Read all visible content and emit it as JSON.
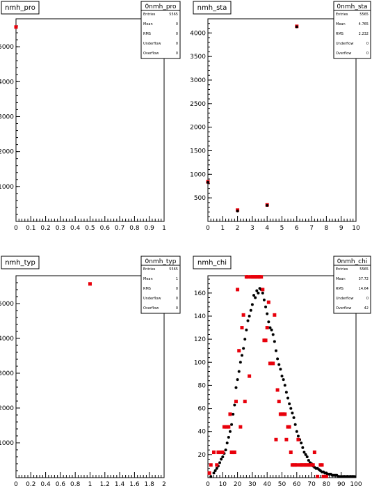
{
  "chart_data": [
    {
      "type": "scatter",
      "title": "nmh_pro",
      "stats": {
        "name": "0nmh_pro",
        "rows": [
          [
            "Entries",
            "5565"
          ],
          [
            "Mean",
            "0"
          ],
          [
            "RMS",
            "0"
          ],
          [
            "Underflow",
            "0"
          ],
          [
            "Overflow",
            "0"
          ]
        ]
      },
      "xlim": [
        0,
        1
      ],
      "ylim": [
        0,
        5800
      ],
      "xticks": [
        "0",
        "0.1",
        "0.2",
        "0.3",
        "0.4",
        "0.5",
        "0.6",
        "0.7",
        "0.8",
        "0.9",
        "1"
      ],
      "yticks": [
        1000,
        2000,
        3000,
        4000,
        5000
      ],
      "ytick_labels": [
        "1000",
        "2000",
        "3000",
        "4000",
        "5000"
      ],
      "series": [
        {
          "color": "#e8000b",
          "marker": "square",
          "points": [
            [
              0,
              5565
            ]
          ]
        }
      ]
    },
    {
      "type": "scatter",
      "title": "nmh_sta",
      "stats": {
        "name": "0nmh_sta",
        "rows": [
          [
            "Entries",
            "5565"
          ],
          [
            "Mean",
            "4.765"
          ],
          [
            "RMS",
            "2.232"
          ],
          [
            "Underflow",
            "0"
          ],
          [
            "Overflow",
            "0"
          ]
        ]
      },
      "xlim": [
        0,
        10
      ],
      "ylim": [
        0,
        4300
      ],
      "xticks": [
        "0",
        "1",
        "2",
        "3",
        "4",
        "5",
        "6",
        "7",
        "8",
        "9",
        "10"
      ],
      "yticks": [
        500,
        1000,
        1500,
        2000,
        2500,
        3000,
        3500,
        4000
      ],
      "ytick_labels": [
        "500",
        "1000",
        "1500",
        "2000",
        "2500",
        "3000",
        "3500",
        "4000"
      ],
      "series": [
        {
          "color": "#e8000b",
          "marker": "square",
          "points": [
            [
              0,
              840
            ],
            [
              2,
              240
            ],
            [
              4,
              350
            ],
            [
              6,
              4140
            ]
          ]
        },
        {
          "color": "#000000",
          "marker": "circle",
          "points": [
            [
              0,
              830
            ],
            [
              2,
              220
            ],
            [
              4,
              340
            ],
            [
              6,
              4130
            ]
          ]
        }
      ]
    },
    {
      "type": "scatter",
      "title": "nmh_typ",
      "stats": {
        "name": "0nmh_typ",
        "rows": [
          [
            "Entries",
            "5565"
          ],
          [
            "Mean",
            "1"
          ],
          [
            "RMS",
            "0"
          ],
          [
            "Underflow",
            "0"
          ],
          [
            "Overflow",
            "0"
          ]
        ]
      },
      "xlim": [
        0,
        2
      ],
      "ylim": [
        0,
        5800
      ],
      "xticks": [
        "0",
        "0.2",
        "0.4",
        "0.6",
        "0.8",
        "1",
        "1.2",
        "1.4",
        "1.6",
        "1.8",
        "2"
      ],
      "yticks": [
        1000,
        2000,
        3000,
        4000,
        5000
      ],
      "ytick_labels": [
        "1000",
        "2000",
        "3000",
        "4000",
        "5000"
      ],
      "series": [
        {
          "color": "#e8000b",
          "marker": "square",
          "points": [
            [
              1,
              5565
            ]
          ]
        }
      ]
    },
    {
      "type": "scatter",
      "title": "nmh_chi",
      "stats": {
        "name": "0nmh_chi",
        "rows": [
          [
            "Entries",
            "5565"
          ],
          [
            "Mean",
            "37.72"
          ],
          [
            "RMS",
            "14.64"
          ],
          [
            "Underflow",
            "0"
          ],
          [
            "Overflow",
            "42"
          ]
        ]
      },
      "xlim": [
        0,
        100
      ],
      "ylim": [
        0,
        175
      ],
      "xticks": [
        "0",
        "10",
        "20",
        "30",
        "40",
        "50",
        "60",
        "70",
        "80",
        "90",
        "100"
      ],
      "yticks": [
        20,
        40,
        60,
        80,
        100,
        120,
        140,
        160
      ],
      "ytick_labels": [
        "20",
        "40",
        "60",
        "80",
        "100",
        "120",
        "140",
        "160"
      ],
      "series": [
        {
          "color": "#000000",
          "marker": "circle",
          "points": [
            [
              2,
              1
            ],
            [
              4,
              4
            ],
            [
              5,
              6
            ],
            [
              6,
              8
            ],
            [
              7,
              10
            ],
            [
              8,
              13
            ],
            [
              9,
              16
            ],
            [
              10,
              18
            ],
            [
              11,
              21
            ],
            [
              12,
              24
            ],
            [
              13,
              30
            ],
            [
              14,
              35
            ],
            [
              15,
              40
            ],
            [
              16,
              46
            ],
            [
              17,
              55
            ],
            [
              18,
              63
            ],
            [
              19,
              78
            ],
            [
              20,
              85
            ],
            [
              21,
              92
            ],
            [
              22,
              100
            ],
            [
              23,
              106
            ],
            [
              24,
              112
            ],
            [
              25,
              120
            ],
            [
              26,
              128
            ],
            [
              27,
              136
            ],
            [
              28,
              140
            ],
            [
              29,
              145
            ],
            [
              30,
              150
            ],
            [
              31,
              158
            ],
            [
              32,
              156
            ],
            [
              33,
              162
            ],
            [
              34,
              160
            ],
            [
              35,
              164
            ],
            [
              36,
              163
            ],
            [
              37,
              160
            ],
            [
              38,
              154
            ],
            [
              39,
              148
            ],
            [
              40,
              142
            ],
            [
              41,
              135
            ],
            [
              42,
              130
            ],
            [
              43,
              128
            ],
            [
              44,
              124
            ],
            [
              45,
              118
            ],
            [
              46,
              110
            ],
            [
              47,
              103
            ],
            [
              48,
              98
            ],
            [
              49,
              94
            ],
            [
              50,
              88
            ],
            [
              51,
              85
            ],
            [
              52,
              80
            ],
            [
              53,
              74
            ],
            [
              54,
              69
            ],
            [
              55,
              64
            ],
            [
              56,
              60
            ],
            [
              57,
              56
            ],
            [
              58,
              52
            ],
            [
              59,
              46
            ],
            [
              60,
              40
            ],
            [
              61,
              36
            ],
            [
              62,
              33
            ],
            [
              63,
              30
            ],
            [
              64,
              26
            ],
            [
              65,
              22
            ],
            [
              66,
              20
            ],
            [
              67,
              18
            ],
            [
              68,
              15
            ],
            [
              69,
              13
            ],
            [
              70,
              12
            ],
            [
              71,
              10
            ],
            [
              72,
              9
            ],
            [
              73,
              8
            ],
            [
              74,
              8
            ],
            [
              75,
              7
            ],
            [
              76,
              6
            ],
            [
              77,
              5
            ],
            [
              78,
              5
            ],
            [
              79,
              4
            ],
            [
              80,
              4
            ],
            [
              81,
              3
            ],
            [
              82,
              3
            ],
            [
              83,
              3
            ],
            [
              84,
              2
            ],
            [
              85,
              2
            ],
            [
              86,
              2
            ],
            [
              87,
              2
            ],
            [
              88,
              1
            ],
            [
              89,
              1
            ],
            [
              90,
              1
            ],
            [
              91,
              1
            ],
            [
              92,
              1
            ],
            [
              93,
              1
            ],
            [
              94,
              1
            ],
            [
              95,
              1
            ],
            [
              96,
              1
            ],
            [
              97,
              1
            ],
            [
              98,
              1
            ],
            [
              99,
              1
            ]
          ]
        },
        {
          "color": "#e8000b",
          "marker": "square",
          "points": [
            [
              1,
              4
            ],
            [
              2,
              11
            ],
            [
              4,
              22
            ],
            [
              6,
              11
            ],
            [
              7,
              22
            ],
            [
              8,
              22
            ],
            [
              10,
              22
            ],
            [
              11,
              44
            ],
            [
              12,
              44
            ],
            [
              13,
              44
            ],
            [
              14,
              44
            ],
            [
              15,
              55
            ],
            [
              16,
              22
            ],
            [
              17,
              22
            ],
            [
              18,
              22
            ],
            [
              19,
              66
            ],
            [
              20,
              163
            ],
            [
              21,
              110
            ],
            [
              22,
              44
            ],
            [
              23,
              130
            ],
            [
              24,
              141
            ],
            [
              25,
              66
            ],
            [
              26,
              174
            ],
            [
              27,
              174
            ],
            [
              28,
              88
            ],
            [
              29,
              174
            ],
            [
              30,
              174
            ],
            [
              31,
              174
            ],
            [
              32,
              174
            ],
            [
              33,
              174
            ],
            [
              34,
              174
            ],
            [
              35,
              174
            ],
            [
              36,
              174
            ],
            [
              37,
              163
            ],
            [
              38,
              119
            ],
            [
              39,
              119
            ],
            [
              40,
              130
            ],
            [
              41,
              152
            ],
            [
              42,
              99
            ],
            [
              43,
              99
            ],
            [
              44,
              99
            ],
            [
              45,
              141
            ],
            [
              46,
              33
            ],
            [
              47,
              76
            ],
            [
              48,
              66
            ],
            [
              49,
              55
            ],
            [
              50,
              55
            ],
            [
              51,
              55
            ],
            [
              52,
              55
            ],
            [
              53,
              33
            ],
            [
              54,
              44
            ],
            [
              55,
              44
            ],
            [
              56,
              22
            ],
            [
              57,
              11
            ],
            [
              58,
              11
            ],
            [
              59,
              11
            ],
            [
              60,
              11
            ],
            [
              61,
              33
            ],
            [
              62,
              11
            ],
            [
              63,
              11
            ],
            [
              64,
              11
            ],
            [
              65,
              11
            ],
            [
              66,
              11
            ],
            [
              67,
              11
            ],
            [
              68,
              11
            ],
            [
              69,
              11
            ],
            [
              70,
              11
            ],
            [
              71,
              11
            ],
            [
              72,
              22
            ],
            [
              74,
              1
            ],
            [
              76,
              11
            ],
            [
              77,
              11
            ],
            [
              78,
              1
            ],
            [
              80,
              1
            ]
          ]
        }
      ]
    }
  ]
}
